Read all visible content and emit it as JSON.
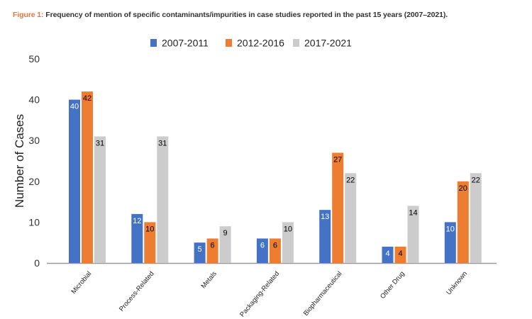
{
  "caption": {
    "lead": "Figure 1:",
    "text": " Frequency of mention of specific contaminants/impurities in case studies reported in the past 15 years (2007–2021)."
  },
  "chart_data": {
    "type": "bar",
    "title": "",
    "xlabel": "",
    "ylabel": "Number of Cases",
    "ylim": [
      0,
      50
    ],
    "yticks": [
      0,
      10,
      20,
      30,
      40,
      50
    ],
    "grid": false,
    "legend_position": "top-center",
    "categories": [
      "Microbial",
      "Process-Related",
      "Metals",
      "Packaging-Related",
      "Biopharmaceutical",
      "Other Drug",
      "Unknown"
    ],
    "series": [
      {
        "name": "2007-2011",
        "color": "#4472c4",
        "label_color": "#ffffff",
        "values": [
          40,
          12,
          5,
          6,
          13,
          4,
          10
        ]
      },
      {
        "name": "2012-2016",
        "color": "#ed7d31",
        "label_color": "#000000",
        "values": [
          42,
          10,
          6,
          6,
          27,
          4,
          20
        ]
      },
      {
        "name": "2017-2021",
        "color": "#cccccc",
        "label_color": "#000000",
        "values": [
          31,
          31,
          9,
          10,
          22,
          14,
          22
        ]
      }
    ]
  }
}
